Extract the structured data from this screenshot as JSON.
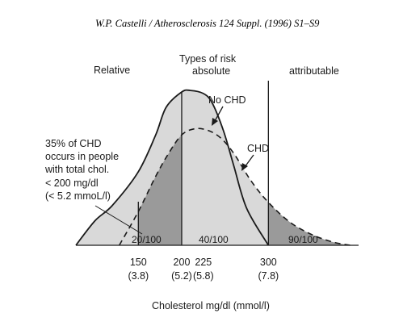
{
  "header": {
    "citation": "W.P. Castelli / Atherosclerosis 124 Suppl. (1996) S1–S9"
  },
  "chart_data": {
    "type": "area",
    "xlabel": "Cholesterol mg/dl (mmol/l)",
    "xlim": [
      78,
      404
    ],
    "ticks": [
      {
        "x": 150,
        "label": "150",
        "sublabel": "(3.8)"
      },
      {
        "x": 200,
        "label": "200",
        "sublabel": "(5.2)"
      },
      {
        "x": 225,
        "label": "225",
        "sublabel": "(5.8)"
      },
      {
        "x": 300,
        "label": "300",
        "sublabel": "(7.8)"
      }
    ],
    "reference_lines": [
      150,
      200,
      300
    ],
    "series": [
      {
        "name": "No CHD",
        "line": "solid",
        "x": [
          78,
          100,
          120,
          150,
          170,
          182,
          200,
          210,
          225,
          235,
          248,
          260,
          275,
          300
        ],
        "y": [
          0.0,
          0.16,
          0.26,
          0.48,
          0.72,
          0.9,
          1.0,
          1.01,
          0.99,
          0.93,
          0.75,
          0.52,
          0.24,
          0.0
        ]
      },
      {
        "name": "CHD",
        "line": "dashed",
        "x": [
          128,
          150,
          170,
          185,
          200,
          215,
          230,
          245,
          260,
          280,
          300,
          325,
          350,
          375,
          395
        ],
        "y": [
          0.0,
          0.22,
          0.45,
          0.6,
          0.72,
          0.76,
          0.75,
          0.7,
          0.6,
          0.42,
          0.28,
          0.15,
          0.07,
          0.02,
          0.0
        ]
      }
    ],
    "regions": [
      {
        "label": "20/100",
        "from": 150,
        "to": 200
      },
      {
        "label": "40/100",
        "from": 200,
        "to": 300
      },
      {
        "label": "90/100",
        "from": 300,
        "to": 395
      }
    ],
    "annotations": {
      "relative": "Relative",
      "types_of_risk": "Types of risk",
      "absolute": "absolute",
      "attributable": "attributable",
      "no_chd": "No CHD",
      "chd": "CHD",
      "note_lines": [
        "35% of CHD",
        "occurs in people",
        "with total chol.",
        "< 200 mg/dl",
        "(< 5.2 mmoL/l)"
      ]
    },
    "colors": {
      "light_fill": "#d9d9d9",
      "dark_fill": "#9a9a9a",
      "line": "#1a1a1a"
    },
    "grid": false
  }
}
